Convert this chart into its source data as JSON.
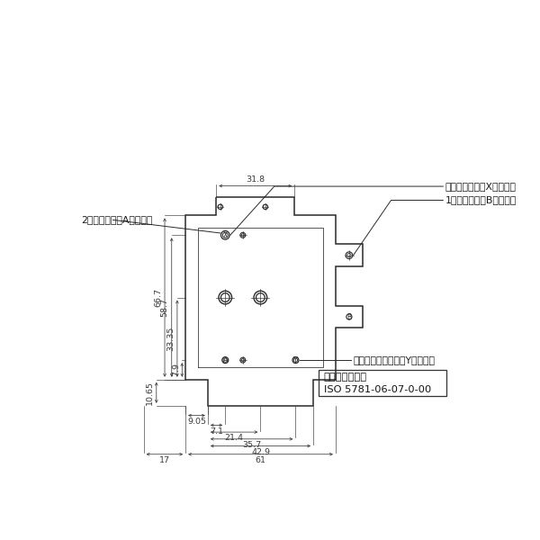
{
  "background_color": "#ffffff",
  "line_color": "#2a2a2a",
  "dim_color": "#3a3a3a",
  "box_label_line1": "取付面（準拠）",
  "box_label_line2": "ISO 5781-06-07-0-00",
  "label_vent": "ベントポート（Xポート）",
  "label_1ji": "1次側ポート（Bポート）",
  "label_2ji": "2次側ポート（Aポート）",
  "label_drain": "外部ドレンポート（Yポート）",
  "dim_31_8": "31.8",
  "dim_66_7": "66.7",
  "dim_58_7": "58.7",
  "dim_33_35": "33.35",
  "dim_7_9": "7.9",
  "dim_10_65": "10.65",
  "dim_9_05": "9.05",
  "dim_7_1": "7.1",
  "dim_21_4": "21.4",
  "dim_35_7": "35.7",
  "dim_42_9": "42.9",
  "dim_17": "17",
  "dim_61": "61",
  "scale": 3.55,
  "ox": 108,
  "oy": 108
}
